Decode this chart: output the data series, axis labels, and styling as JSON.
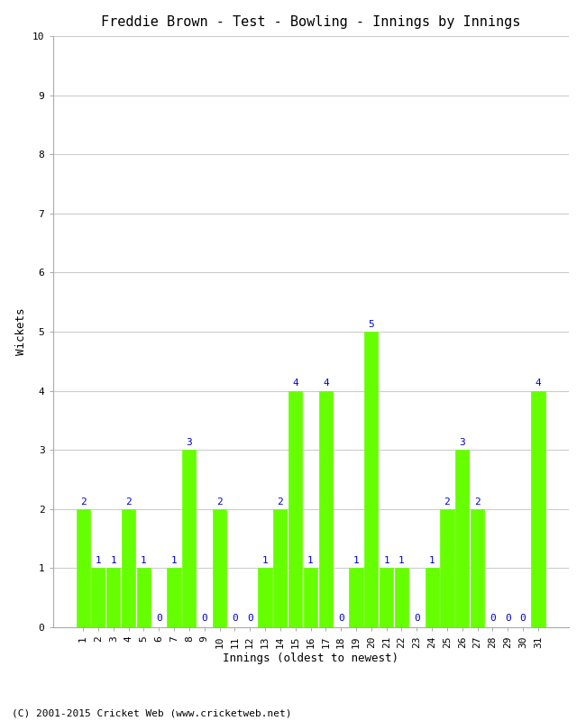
{
  "title": "Freddie Brown - Test - Bowling - Innings by Innings",
  "xlabel": "Innings (oldest to newest)",
  "ylabel": "Wickets",
  "footer": "(C) 2001-2015 Cricket Web (www.cricketweb.net)",
  "innings": [
    1,
    2,
    3,
    4,
    5,
    6,
    7,
    8,
    9,
    10,
    11,
    12,
    13,
    14,
    15,
    16,
    17,
    18,
    19,
    20,
    21,
    22,
    23,
    24,
    25,
    26,
    27,
    28,
    29,
    30,
    31
  ],
  "wickets": [
    2,
    1,
    1,
    2,
    1,
    0,
    1,
    3,
    0,
    2,
    0,
    0,
    1,
    2,
    4,
    1,
    4,
    0,
    1,
    5,
    1,
    1,
    0,
    1,
    2,
    3,
    2,
    0,
    0,
    0,
    4
  ],
  "bar_color": "#66FF00",
  "bar_edge_color": "#66FF00",
  "label_color": "#0000CC",
  "background_color": "#ffffff",
  "ylim": [
    0,
    10
  ],
  "yticks": [
    0,
    1,
    2,
    3,
    4,
    5,
    6,
    7,
    8,
    9,
    10
  ],
  "grid_color": "#cccccc",
  "title_fontsize": 11,
  "axis_label_fontsize": 9,
  "tick_fontsize": 8,
  "bar_label_fontsize": 8,
  "footer_fontsize": 8
}
